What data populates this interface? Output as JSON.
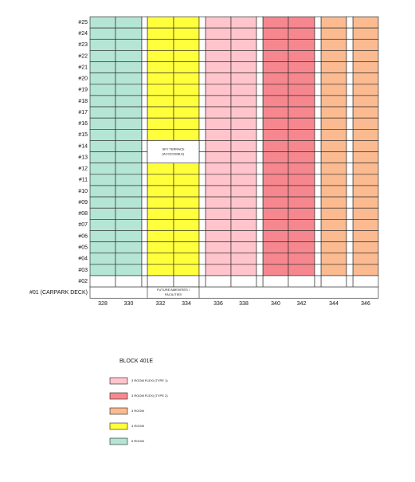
{
  "block_title": "BLOCK 401E",
  "floors": [
    "#25",
    "#24",
    "#23",
    "#22",
    "#21",
    "#20",
    "#19",
    "#18",
    "#17",
    "#16",
    "#15",
    "#14",
    "#13",
    "#12",
    "#11",
    "#10",
    "#09",
    "#08",
    "#07",
    "#06",
    "#05",
    "#04",
    "#03",
    "#02",
    "#01 (CARPARK DECK)"
  ],
  "units": [
    {
      "label": "328",
      "color": "#b5e5d4"
    },
    {
      "label": "330",
      "color": "#b5e5d4"
    },
    {
      "label": "332",
      "color": "#ffff3c"
    },
    {
      "label": "334",
      "color": "#ffff3c"
    },
    {
      "label": "336",
      "color": "#ffc4cc"
    },
    {
      "label": "338",
      "color": "#ffc4cc"
    },
    {
      "label": "340",
      "color": "#f7878f"
    },
    {
      "label": "342",
      "color": "#f7878f"
    },
    {
      "label": "344",
      "color": "#fbba90"
    },
    {
      "label": "346",
      "color": "#fbba90"
    }
  ],
  "sky_terrace": [
    "SKY TERRACE",
    "(ACCESSIBLE)"
  ],
  "amenities": [
    "FUTURE AMENITIES /",
    "FACILITIES"
  ],
  "legend": [
    {
      "label": "3 ROOM FLEXI (TYPE 1)",
      "color": "#ffc4cc"
    },
    {
      "label": "3 ROOM FLEXI (TYPE 2)",
      "color": "#f7878f"
    },
    {
      "label": "3 ROOM",
      "color": "#fbba90"
    },
    {
      "label": "4 ROOM",
      "color": "#ffff3c"
    },
    {
      "label": "5 ROOM",
      "color": "#b5e5d4"
    }
  ]
}
